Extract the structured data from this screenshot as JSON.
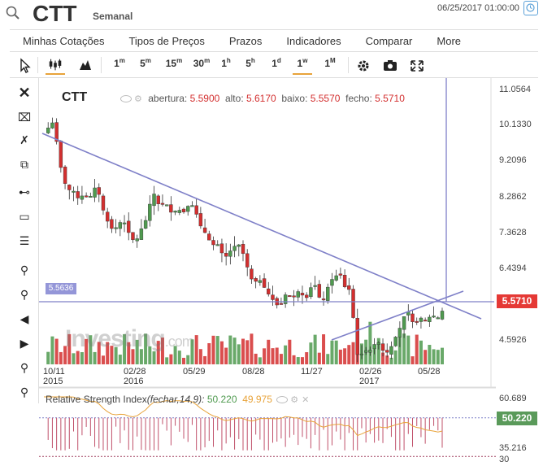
{
  "header": {
    "symbol": "CTT",
    "period": "Semanal",
    "datetime": "06/25/2017 01:00:00"
  },
  "menu": [
    "Minhas Cotações",
    "Tipos de Preços",
    "Prazos",
    "Indicadores",
    "Comparar",
    "More"
  ],
  "toolbar": {
    "intervals": [
      {
        "label": "1",
        "sup": "m"
      },
      {
        "label": "5",
        "sup": "m"
      },
      {
        "label": "15",
        "sup": "m"
      },
      {
        "label": "30",
        "sup": "m"
      },
      {
        "label": "1",
        "sup": "h"
      },
      {
        "label": "5",
        "sup": "h"
      },
      {
        "label": "1",
        "sup": "d"
      },
      {
        "label": "1",
        "sup": "w"
      },
      {
        "label": "1",
        "sup": "M"
      }
    ],
    "active_interval": "1w"
  },
  "ohlc": {
    "title": "CTT",
    "open_label": "abertura:",
    "open": "5.5900",
    "high_label": "alto:",
    "high": "5.6170",
    "low_label": "baixo:",
    "low": "5.5570",
    "close_label": "fecho:",
    "close": "5.5710"
  },
  "price_axis": [
    "11.0564",
    "10.1330",
    "9.2096",
    "8.2862",
    "7.3628",
    "6.4394",
    "4.5926"
  ],
  "current_price": "5.5710",
  "hline_value": "5.5636",
  "x_axis": [
    {
      "label": "10/11",
      "year": "2015"
    },
    {
      "label": "02/28",
      "year": "2016"
    },
    {
      "label": "05/29",
      "year": ""
    },
    {
      "label": "08/28",
      "year": ""
    },
    {
      "label": "11/27",
      "year": ""
    },
    {
      "label": "02/26",
      "year": "2017"
    },
    {
      "label": "05/28",
      "year": ""
    }
  ],
  "watermark": {
    "brand": "Investing",
    "suffix": ".com"
  },
  "rsi": {
    "title": "Relative Strength Index",
    "params": "(fechar,14,9):",
    "value1": "50.220",
    "value2": "49.975",
    "axis": [
      "60.689",
      "35.216",
      "30"
    ],
    "current": "50.220"
  },
  "colors": {
    "up": "#4f9a4f",
    "down": "#d32f2f",
    "trend": "#7f80c8",
    "ma": "#e8a33a"
  },
  "chart_data": {
    "type": "candlestick",
    "weekly_close": [
      9.95,
      10.2,
      9.1,
      8.55,
      8.35,
      8.4,
      8.6,
      8.05,
      7.6,
      7.75,
      7.5,
      7.35,
      7.8,
      8.45,
      8.2,
      8.0,
      8.05,
      8.15,
      7.95,
      7.5,
      7.2,
      7.0,
      7.05,
      7.2,
      6.65,
      6.3,
      6.15,
      5.85,
      5.75,
      5.95,
      6.05,
      5.9,
      6.2,
      5.85,
      6.35,
      6.45,
      6.1,
      4.5,
      4.6,
      4.75,
      4.6,
      4.7,
      5.15,
      5.55,
      5.3,
      5.35,
      5.45,
      5.571
    ],
    "ylim": [
      4.1,
      11.3
    ],
    "trendlines": [
      {
        "from": [
          "10/11/2015",
          9.9
        ],
        "to": [
          "06/25/2017",
          5.5
        ]
      },
      {
        "from": [
          "02/26/2017",
          4.2
        ],
        "to": [
          "06/25/2017",
          5.75
        ]
      }
    ]
  }
}
